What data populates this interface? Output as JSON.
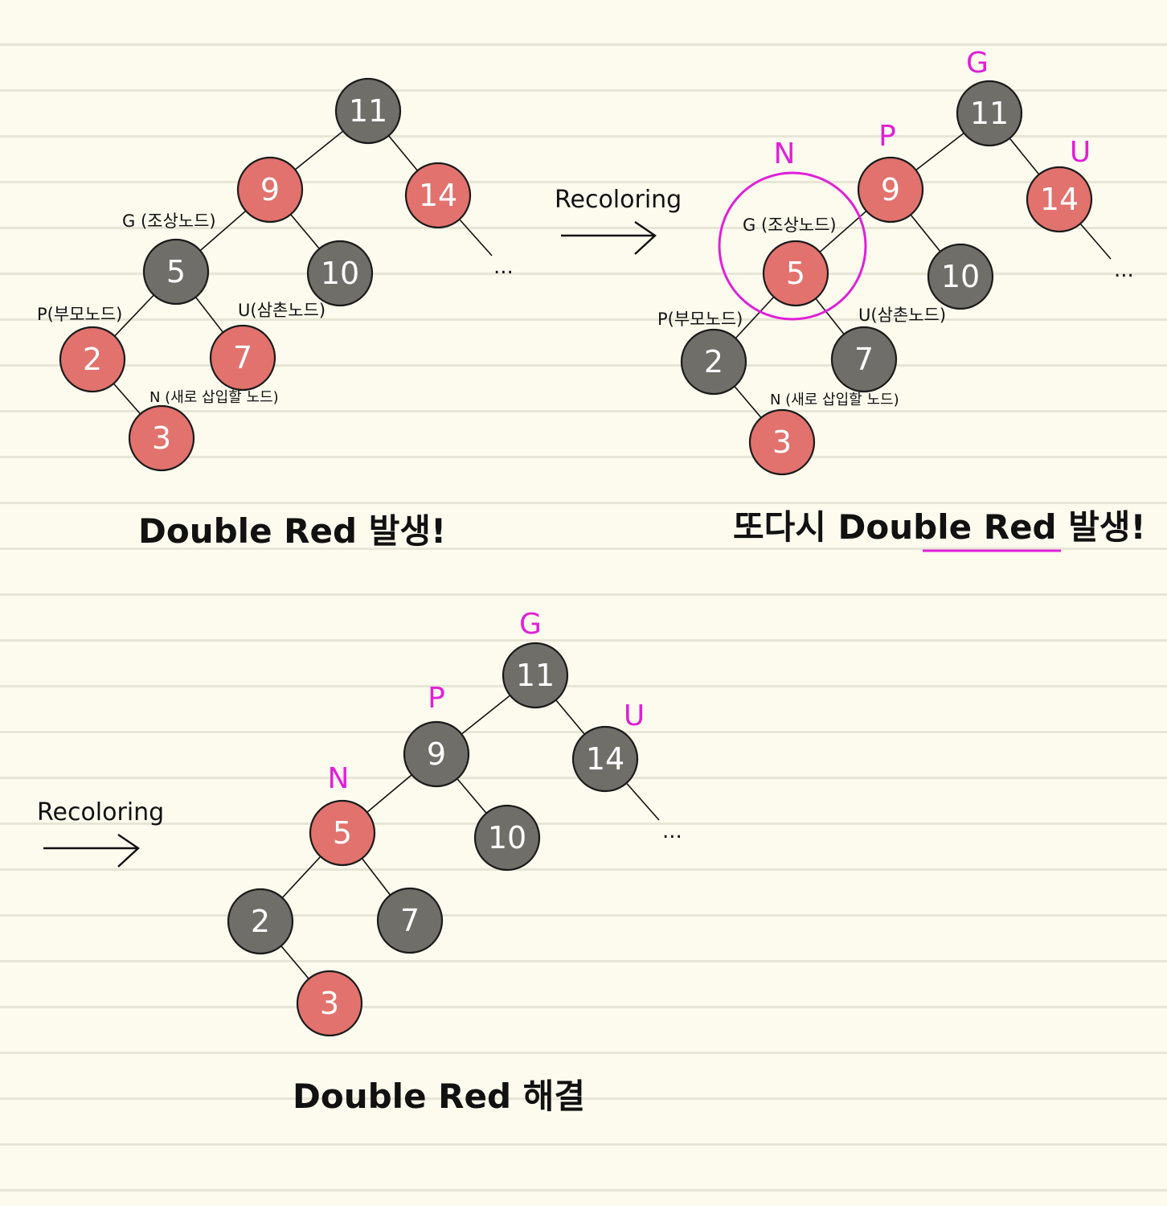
{
  "diagrams": [
    {
      "nodes": [
        {
          "value": "11",
          "color": "black"
        },
        {
          "value": "9",
          "color": "red"
        },
        {
          "value": "14",
          "color": "red"
        },
        {
          "value": "5",
          "color": "black"
        },
        {
          "value": "10",
          "color": "black"
        },
        {
          "value": "2",
          "color": "red"
        },
        {
          "value": "7",
          "color": "red"
        },
        {
          "value": "3",
          "color": "red"
        }
      ],
      "labels": {
        "g": "G (조상노드)",
        "p": "P(부모노드)",
        "u": "U(삼촌노드)",
        "n": "N (새로 삽입할 노드)"
      },
      "ellipsis": "...",
      "caption": "Double Red 발생!"
    },
    {
      "nodes": [
        {
          "value": "11",
          "color": "black"
        },
        {
          "value": "9",
          "color": "red"
        },
        {
          "value": "14",
          "color": "red"
        },
        {
          "value": "5",
          "color": "red"
        },
        {
          "value": "10",
          "color": "black"
        },
        {
          "value": "2",
          "color": "black"
        },
        {
          "value": "7",
          "color": "black"
        },
        {
          "value": "3",
          "color": "red"
        }
      ],
      "labels": {
        "g": "G (조상노드)",
        "p": "P(부모노드)",
        "u": "U(삼촌노드)",
        "n": "N (새로 삽입할 노드)"
      },
      "marks": {
        "g": "G",
        "p": "P",
        "u": "U",
        "n": "N"
      },
      "ellipsis": "...",
      "caption": "또다시 Double Red 발생!"
    },
    {
      "nodes": [
        {
          "value": "11",
          "color": "black"
        },
        {
          "value": "9",
          "color": "black"
        },
        {
          "value": "14",
          "color": "black"
        },
        {
          "value": "5",
          "color": "red"
        },
        {
          "value": "10",
          "color": "black"
        },
        {
          "value": "2",
          "color": "black"
        },
        {
          "value": "7",
          "color": "black"
        },
        {
          "value": "3",
          "color": "red"
        }
      ],
      "marks": {
        "g": "G",
        "p": "P",
        "u": "U",
        "n": "N"
      },
      "ellipsis": "...",
      "caption": "Double Red 해결"
    }
  ],
  "arrows": [
    {
      "label": "Recoloring"
    },
    {
      "label": "Recoloring"
    }
  ],
  "colors": {
    "red_node": "#e2726d",
    "black_node": "#6f6e69",
    "highlight": "#e020d8"
  }
}
